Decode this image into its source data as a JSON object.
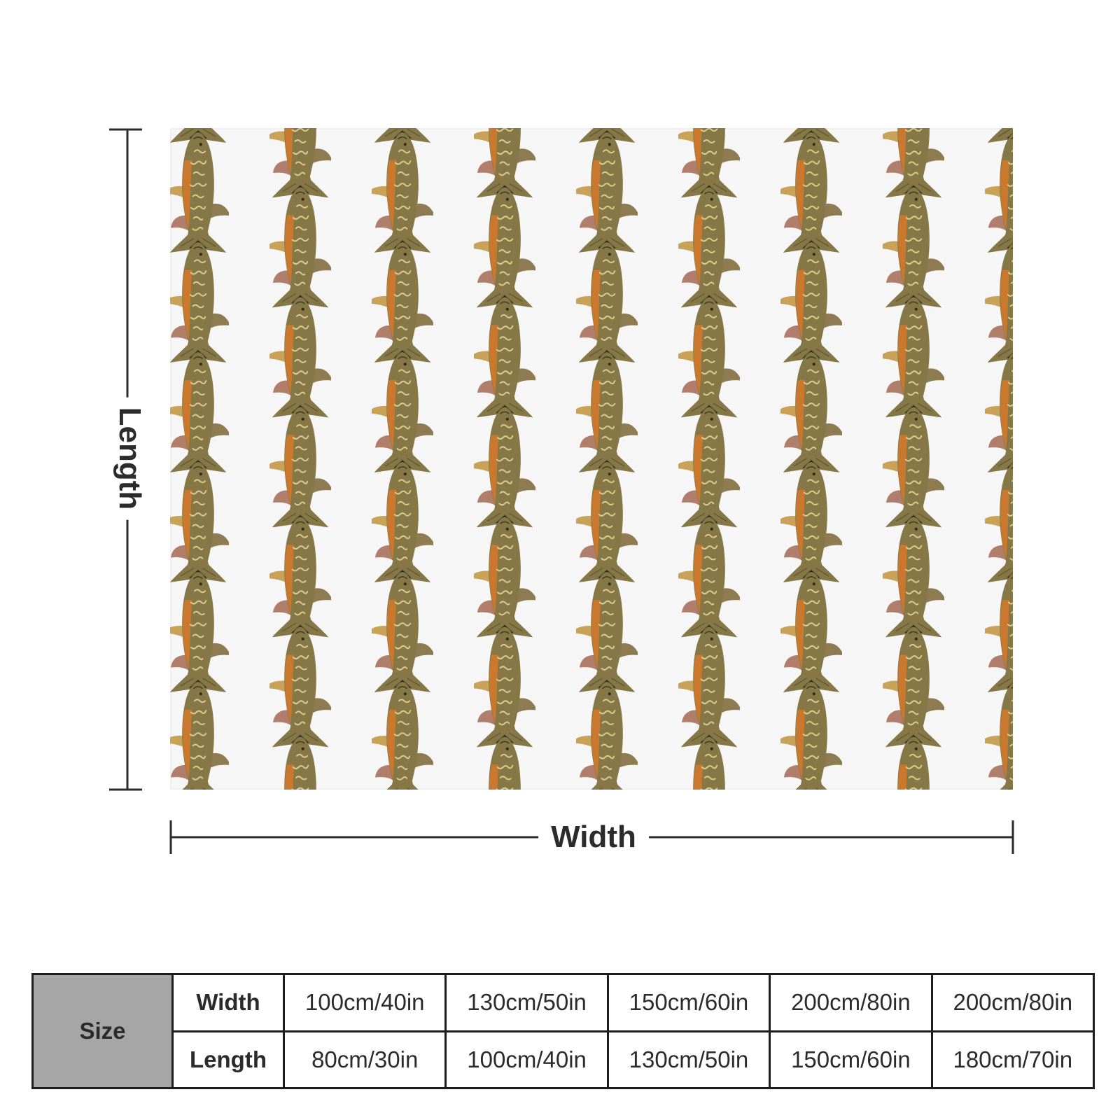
{
  "dimension_labels": {
    "length": "Length",
    "width": "Width"
  },
  "size_table": {
    "heading": "Size",
    "rows": [
      {
        "label": "Width",
        "values": [
          "100cm/40in",
          "130cm/50in",
          "150cm/60in",
          "200cm/80in",
          "200cm/80in"
        ]
      },
      {
        "label": "Length",
        "values": [
          "80cm/30in",
          "100cm/40in",
          "130cm/50in",
          "150cm/60in",
          "180cm/70in"
        ]
      }
    ]
  },
  "pattern": {
    "motif": "trout-fish",
    "background": "#f6f6f7",
    "body_color": "#8a7a45",
    "belly_color": "#c9782e"
  },
  "colors": {
    "ink": "#2b2b2b",
    "table_header_bg": "#a6a6a6",
    "table_border": "#1d1d1d"
  }
}
